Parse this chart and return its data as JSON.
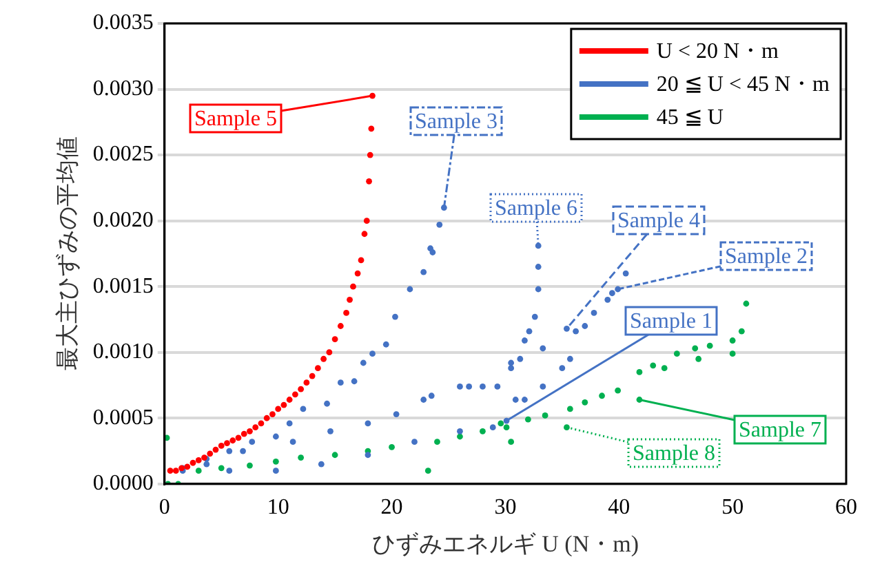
{
  "chart_data": {
    "type": "scatter",
    "xlabel": "ひずみエネルギ U (N・m)",
    "ylabel": "最大主ひずみの平均値",
    "xlim": [
      0,
      60
    ],
    "xticks": [
      0,
      10,
      20,
      30,
      40,
      50,
      60
    ],
    "ylim": [
      0,
      0.0035
    ],
    "yticks": [
      {
        "value": 0,
        "label": "0.0000"
      },
      {
        "value": 0.0005,
        "label": "0.0005"
      },
      {
        "value": 0.001,
        "label": "0.0010"
      },
      {
        "value": 0.0015,
        "label": "0.0015"
      },
      {
        "value": 0.002,
        "label": "0.0020"
      },
      {
        "value": 0.0025,
        "label": "0.0025"
      },
      {
        "value": 0.003,
        "label": "0.0030"
      },
      {
        "value": 0.0035,
        "label": "0.0035"
      }
    ],
    "grid": "y",
    "legend": "top right",
    "marker": "circle",
    "series": [
      {
        "name": "U < 20 N・m",
        "color": "#ff0000",
        "x": [
          0.5,
          1,
          1.5,
          2,
          2.5,
          3,
          3.5,
          4,
          4.5,
          5,
          5.5,
          6,
          6.5,
          7,
          7.5,
          8,
          8.5,
          9,
          9.5,
          10,
          10.5,
          11,
          11.5,
          12,
          12.5,
          13,
          13.5,
          14,
          14.5,
          15,
          15.5,
          16,
          16.3,
          16.6,
          17,
          17.3,
          17.6,
          17.8,
          18,
          18.1,
          18.2,
          18.3
        ],
        "values": [
          0.0001,
          0.0001,
          0.00012,
          0.00013,
          0.00016,
          0.00018,
          0.0002,
          0.00023,
          0.00026,
          0.00029,
          0.00031,
          0.00033,
          0.00035,
          0.00038,
          0.0004,
          0.00043,
          0.00046,
          0.0005,
          0.00053,
          0.00057,
          0.0006,
          0.00064,
          0.00068,
          0.00072,
          0.00077,
          0.00082,
          0.00088,
          0.00095,
          0.001,
          0.0011,
          0.0012,
          0.0013,
          0.0014,
          0.0015,
          0.0016,
          0.0017,
          0.0019,
          0.002,
          0.0023,
          0.0025,
          0.0027,
          0.00295
        ]
      },
      {
        "name": "20 ≦ U < 45 N・m",
        "color": "#4472c4",
        "x": [
          1.6,
          3.7,
          5.7,
          7.7,
          9.8,
          11,
          12.2,
          14.3,
          15.5,
          16.7,
          17.5,
          18.3,
          19.5,
          20.3,
          21.6,
          22.8,
          23.4,
          23.6,
          24.2,
          24.6,
          3.7,
          6.9,
          11.3,
          14.6,
          17.9,
          20.4,
          22.8,
          26,
          29.3,
          30.5,
          31.3,
          31.7,
          32.1,
          32.6,
          32.9,
          32.9,
          32.9,
          1.6,
          5.7,
          9.8,
          13.8,
          17.9,
          22,
          26,
          30.1,
          23.5,
          26.8,
          28,
          30.5,
          33.3,
          35.4,
          36.2,
          37.8,
          39,
          40.6,
          28.9,
          30.9,
          31.7,
          33.3,
          35,
          35.7,
          37,
          39.4,
          39.9
        ],
        "values": [
          0.00012,
          0.00019,
          0.00025,
          0.00032,
          0.00036,
          0.00046,
          0.00057,
          0.00061,
          0.00077,
          0.00078,
          0.00092,
          0.00099,
          0.00106,
          0.00127,
          0.00148,
          0.00161,
          0.00179,
          0.00176,
          0.00197,
          0.0021,
          0.00015,
          0.00025,
          0.00032,
          0.0004,
          0.00046,
          0.00053,
          0.00064,
          0.00074,
          0.00074,
          0.00092,
          0.00095,
          0.00109,
          0.00116,
          0.00127,
          0.00148,
          0.00165,
          0.00181,
          0.0001,
          0.0001,
          0.0001,
          0.00015,
          0.00022,
          0.00032,
          0.0004,
          0.00048,
          0.00067,
          0.00074,
          0.00074,
          0.00088,
          0.00103,
          0.00118,
          0.00116,
          0.0013,
          0.0014,
          0.0016,
          0.00043,
          0.00064,
          0.00064,
          0.00074,
          0.00088,
          0.00095,
          0.0012,
          0.00145,
          0.00148
        ]
      },
      {
        "name": "45 ≦ U",
        "color": "#00b050",
        "x": [
          0.2,
          0.3,
          1.2,
          3,
          5,
          7.5,
          9.8,
          12,
          15,
          17.9,
          20,
          23.2,
          24,
          26,
          28,
          30.1,
          29.6,
          30.5,
          32,
          33.5,
          35.4,
          35.7,
          37,
          38.5,
          39.9,
          41.8,
          41.8,
          43,
          45.1,
          46.7,
          48,
          50,
          50.8,
          51.2,
          50,
          47,
          44
        ],
        "values": [
          0.00035,
          0,
          0,
          0.0001,
          0.00012,
          0.00014,
          0.00017,
          0.0002,
          0.00022,
          0.00025,
          0.00028,
          0.0001,
          0.00032,
          0.00036,
          0.0004,
          0.00043,
          0.00046,
          0.00032,
          0.00049,
          0.00052,
          0.00043,
          0.00057,
          0.00062,
          0.00067,
          0.00071,
          0.00064,
          0.00085,
          0.0009,
          0.00099,
          0.00103,
          0.00105,
          0.00109,
          0.00116,
          0.00137,
          0.00099,
          0.00095,
          0.00088
        ]
      }
    ],
    "annotations": [
      {
        "text": "Sample 5",
        "x": 18.3,
        "y": 0.00295
      },
      {
        "text": "Sample 3",
        "x": 24.6,
        "y": 0.0021
      },
      {
        "text": "Sample 6",
        "x": 32.9,
        "y": 0.00181
      },
      {
        "text": "Sample 4",
        "x": 35.4,
        "y": 0.00118
      },
      {
        "text": "Sample 2",
        "x": 39.9,
        "y": 0.00148
      },
      {
        "text": "Sample 1",
        "x": 30.1,
        "y": 0.00048
      },
      {
        "text": "Sample 7",
        "x": 41.8,
        "y": 0.00064
      },
      {
        "text": "Sample 8",
        "x": 35.4,
        "y": 0.00043
      }
    ]
  }
}
